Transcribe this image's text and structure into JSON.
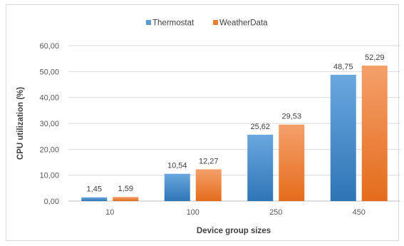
{
  "chart_data": {
    "type": "bar",
    "categories": [
      "10",
      "100",
      "250",
      "450"
    ],
    "series": [
      {
        "name": "Thermostat",
        "values": [
          1.45,
          10.54,
          25.62,
          48.75
        ],
        "labels": [
          "1,45",
          "10,54",
          "25,62",
          "48,75"
        ],
        "color": "#5b9bd5"
      },
      {
        "name": "WeatherData",
        "values": [
          1.59,
          12.27,
          29.53,
          52.29
        ],
        "labels": [
          "1,59",
          "12,27",
          "29,53",
          "52,29"
        ],
        "color": "#ed7d31"
      }
    ],
    "title": "",
    "xlabel": "Device group sizes",
    "ylabel": "CPU utilization (%)",
    "ylim": [
      0,
      60
    ],
    "yticks": [
      0,
      10,
      20,
      30,
      40,
      50,
      60
    ],
    "ytick_labels": [
      "0,00",
      "10,00",
      "20,00",
      "30,00",
      "40,00",
      "50,00",
      "60,00"
    ],
    "grid": true,
    "legend_position": "top-center"
  }
}
